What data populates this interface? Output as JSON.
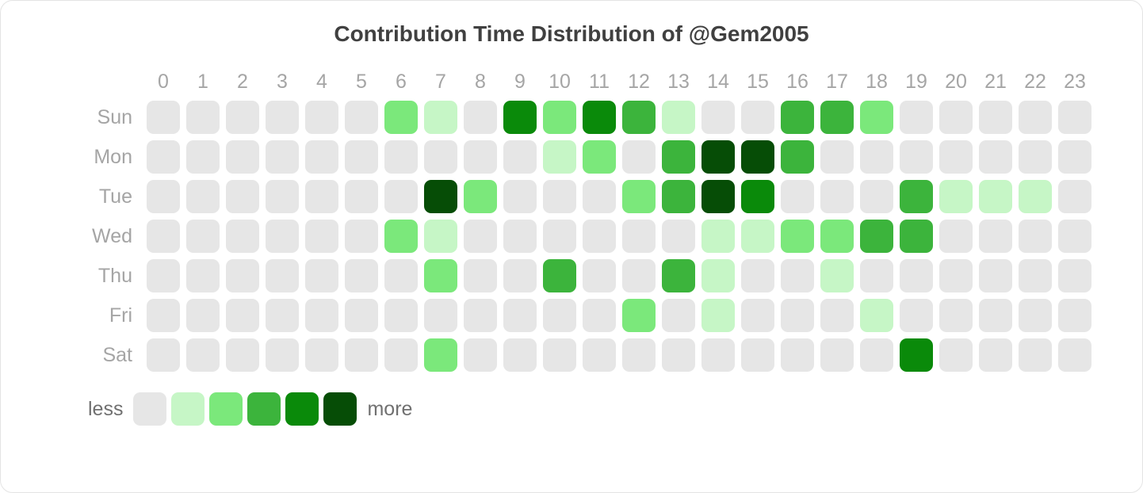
{
  "chart": {
    "type": "heatmap",
    "title": "Contribution Time Distribution of @Gem2005",
    "title_fontsize": 28,
    "title_color": "#404040",
    "hour_labels": [
      "0",
      "1",
      "2",
      "3",
      "4",
      "5",
      "6",
      "7",
      "8",
      "9",
      "10",
      "11",
      "12",
      "13",
      "14",
      "15",
      "16",
      "17",
      "18",
      "19",
      "20",
      "21",
      "22",
      "23"
    ],
    "day_labels": [
      "Sun",
      "Mon",
      "Tue",
      "Wed",
      "Thu",
      "Fri",
      "Sat"
    ],
    "axis_label_fontsize": 25,
    "axis_label_color": "#a5a5a5",
    "cell_size": 42,
    "cell_gap": 8,
    "cell_radius": 9,
    "background_color": "#ffffff",
    "border_color": "#e4e4e4",
    "levels_colors": [
      "#e6e6e6",
      "#c6f6c6",
      "#7be87b",
      "#3cb43c",
      "#0a8a0a",
      "#064d06"
    ],
    "data": [
      [
        0,
        0,
        0,
        0,
        0,
        0,
        2,
        1,
        0,
        4,
        2,
        4,
        3,
        1,
        0,
        0,
        3,
        3,
        2,
        0,
        0,
        0,
        0,
        0
      ],
      [
        0,
        0,
        0,
        0,
        0,
        0,
        0,
        0,
        0,
        0,
        1,
        2,
        0,
        3,
        5,
        5,
        3,
        0,
        0,
        0,
        0,
        0,
        0,
        0
      ],
      [
        0,
        0,
        0,
        0,
        0,
        0,
        0,
        5,
        2,
        0,
        0,
        0,
        2,
        3,
        5,
        4,
        0,
        0,
        0,
        3,
        1,
        1,
        1,
        0
      ],
      [
        0,
        0,
        0,
        0,
        0,
        0,
        2,
        1,
        0,
        0,
        0,
        0,
        0,
        0,
        1,
        1,
        2,
        2,
        3,
        3,
        0,
        0,
        0,
        0
      ],
      [
        0,
        0,
        0,
        0,
        0,
        0,
        0,
        2,
        0,
        0,
        3,
        0,
        0,
        3,
        1,
        0,
        0,
        1,
        0,
        0,
        0,
        0,
        0,
        0
      ],
      [
        0,
        0,
        0,
        0,
        0,
        0,
        0,
        0,
        0,
        0,
        0,
        0,
        2,
        0,
        1,
        0,
        0,
        0,
        1,
        0,
        0,
        0,
        0,
        0
      ],
      [
        0,
        0,
        0,
        0,
        0,
        0,
        0,
        2,
        0,
        0,
        0,
        0,
        0,
        0,
        0,
        0,
        0,
        0,
        0,
        4,
        0,
        0,
        0,
        0
      ]
    ],
    "legend": {
      "less_label": "less",
      "more_label": "more",
      "label_fontsize": 25,
      "label_color": "#707070",
      "levels": [
        0,
        1,
        2,
        3,
        4,
        5
      ]
    }
  }
}
